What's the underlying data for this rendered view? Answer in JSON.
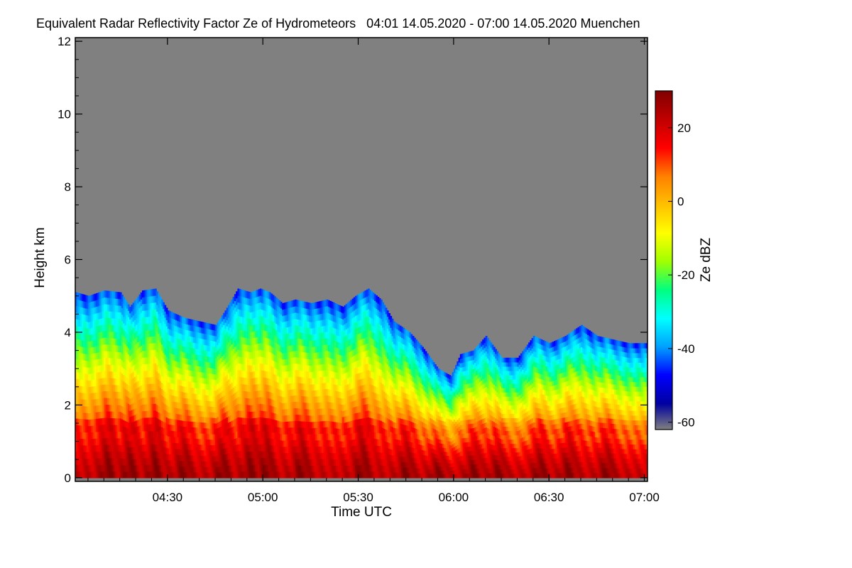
{
  "chart_data": {
    "type": "heatmap",
    "title": "Equivalent Radar Reflectivity Factor Ze of Hydrometeors   04:01 14.05.2020 - 07:00 14.05.2020 Muenchen",
    "xlabel": "Time UTC",
    "ylabel": "Height km",
    "colorbar_label": "Ze dBZ",
    "x_range_min": [
      241,
      421
    ],
    "y_range_km": [
      -0.1,
      12.1
    ],
    "z_range_dbz": [
      -62,
      30
    ],
    "x_ticks": [
      {
        "min": 270,
        "label": "04:30"
      },
      {
        "min": 300,
        "label": "05:00"
      },
      {
        "min": 330,
        "label": "05:30"
      },
      {
        "min": 360,
        "label": "06:00"
      },
      {
        "min": 390,
        "label": "06:30"
      },
      {
        "min": 420,
        "label": "07:00"
      }
    ],
    "y_ticks": [
      {
        "km": 0,
        "label": "0"
      },
      {
        "km": 2,
        "label": "2"
      },
      {
        "km": 4,
        "label": "4"
      },
      {
        "km": 6,
        "label": "6"
      },
      {
        "km": 8,
        "label": "8"
      },
      {
        "km": 10,
        "label": "10"
      },
      {
        "km": 12,
        "label": "12"
      }
    ],
    "colorbar_ticks": [
      {
        "dbz": 20,
        "label": "20"
      },
      {
        "dbz": 0,
        "label": "0"
      },
      {
        "dbz": -20,
        "label": "-20"
      },
      {
        "dbz": -40,
        "label": "-40"
      },
      {
        "dbz": -60,
        "label": "-60"
      }
    ],
    "no_signal_color": "#808080",
    "colormap": [
      "#0000a0",
      "#0000ff",
      "#00a0ff",
      "#00ffff",
      "#00ff80",
      "#a0ff00",
      "#ffff00",
      "#ffc000",
      "#ff8000",
      "#ff0000",
      "#c00000",
      "#800000"
    ],
    "echo_top_km": [
      {
        "min": 241,
        "km": 5.1
      },
      {
        "min": 245,
        "km": 5.0
      },
      {
        "min": 250,
        "km": 5.15
      },
      {
        "min": 255,
        "km": 5.1
      },
      {
        "min": 258,
        "km": 4.7
      },
      {
        "min": 262,
        "km": 5.15
      },
      {
        "min": 266,
        "km": 5.2
      },
      {
        "min": 270,
        "km": 4.6
      },
      {
        "min": 275,
        "km": 4.4
      },
      {
        "min": 280,
        "km": 4.3
      },
      {
        "min": 285,
        "km": 4.2
      },
      {
        "min": 288,
        "km": 4.6
      },
      {
        "min": 292,
        "km": 5.2
      },
      {
        "min": 296,
        "km": 5.1
      },
      {
        "min": 299,
        "km": 5.2
      },
      {
        "min": 302,
        "km": 5.1
      },
      {
        "min": 306,
        "km": 4.8
      },
      {
        "min": 310,
        "km": 4.9
      },
      {
        "min": 315,
        "km": 4.8
      },
      {
        "min": 320,
        "km": 4.9
      },
      {
        "min": 325,
        "km": 4.7
      },
      {
        "min": 329,
        "km": 5.0
      },
      {
        "min": 333,
        "km": 5.2
      },
      {
        "min": 337,
        "km": 4.9
      },
      {
        "min": 341,
        "km": 4.3
      },
      {
        "min": 346,
        "km": 4.0
      },
      {
        "min": 350,
        "km": 3.6
      },
      {
        "min": 355,
        "km": 3.0
      },
      {
        "min": 359,
        "km": 2.8
      },
      {
        "min": 362,
        "km": 3.4
      },
      {
        "min": 366,
        "km": 3.5
      },
      {
        "min": 370,
        "km": 3.9
      },
      {
        "min": 375,
        "km": 3.3
      },
      {
        "min": 380,
        "km": 3.3
      },
      {
        "min": 385,
        "km": 3.9
      },
      {
        "min": 390,
        "km": 3.7
      },
      {
        "min": 395,
        "km": 3.9
      },
      {
        "min": 400,
        "km": 4.2
      },
      {
        "min": 405,
        "km": 3.9
      },
      {
        "min": 410,
        "km": 3.8
      },
      {
        "min": 415,
        "km": 3.7
      },
      {
        "min": 421,
        "km": 3.7
      }
    ],
    "fall_streak_min": [
      251,
      258,
      266,
      275,
      287,
      296,
      301,
      312,
      331,
      345,
      355,
      366,
      374,
      387,
      396,
      408
    ],
    "melting_layer_km": 1.4
  }
}
